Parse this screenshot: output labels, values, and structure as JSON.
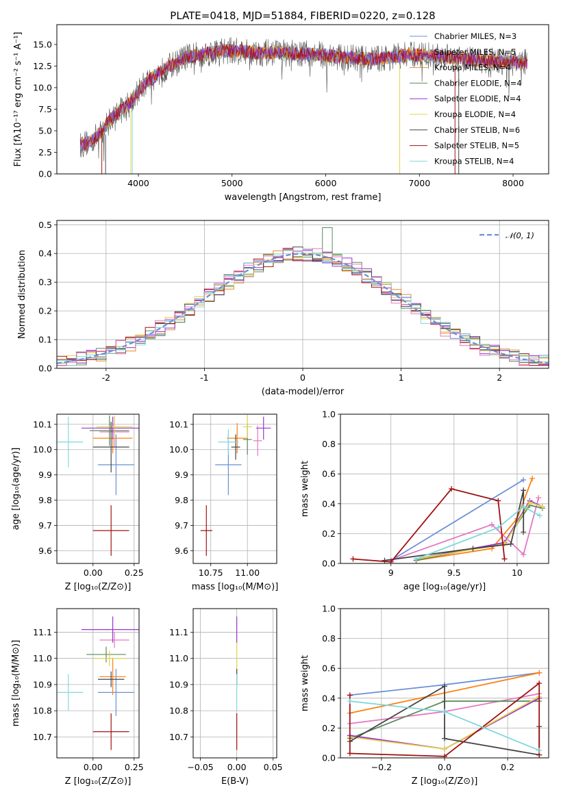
{
  "chart_data": [
    {
      "type": "line",
      "title": "PLATE=0418, MJD=51884, FIBERID=0220, z=0.128",
      "xlabel": "wavelength [Angstrom, rest frame]",
      "ylabel": "Flux [fλ10⁻¹⁷ erg cm⁻² s⁻¹ A⁻¹]",
      "xlim": [
        3130,
        8380
      ],
      "ylim": [
        0,
        17.3
      ],
      "xticks": [
        4000,
        5000,
        6000,
        7000,
        8000
      ],
      "yticks": [
        0.0,
        2.5,
        5.0,
        7.5,
        10.0,
        12.5,
        15.0
      ],
      "grid": false,
      "legend_placement": "top-right",
      "series": [
        {
          "name": "Chabrier MILES, N_SSP=3",
          "color": "#6a8fd8"
        },
        {
          "name": "Salpeter MILES, N_SSP=5",
          "color": "#ff7f0e"
        },
        {
          "name": "Kroupa MILES, N_SSP=4",
          "color": "#e08a2c"
        },
        {
          "name": "Chabrier ELODIE, N_SSP=4",
          "color": "#5a8a5a"
        },
        {
          "name": "Salpeter ELODIE, N_SSP=4",
          "color": "#9932cc"
        },
        {
          "name": "Kroupa ELODIE, N_SSP=4",
          "color": "#e3d24a"
        },
        {
          "name": "Chabrier STELIB, N_SSP=6",
          "color": "#444444"
        },
        {
          "name": "Salpeter STELIB, N_SSP=5",
          "color": "#a01010"
        },
        {
          "name": "Kroupa STELIB, N_SSP=4",
          "color": "#7fd8dc"
        }
      ],
      "continuum_x": [
        3380,
        3500,
        3600,
        3700,
        3800,
        3900,
        4000,
        4100,
        4200,
        4300,
        4400,
        4500,
        4700,
        4900,
        5100,
        5300,
        5500,
        5700,
        5900,
        6100,
        6300,
        6500,
        6700,
        6900,
        7100,
        7300,
        7500,
        7700,
        7900,
        8100
      ],
      "continuum_y": [
        3.3,
        3.8,
        4.8,
        6.3,
        7.3,
        8.1,
        9.6,
        10.8,
        11.5,
        12.3,
        12.8,
        13.5,
        13.9,
        14.3,
        14.2,
        14.0,
        14.1,
        13.9,
        13.9,
        13.6,
        13.4,
        13.3,
        13.5,
        13.8,
        13.7,
        13.5,
        13.3,
        13.1,
        13.0,
        12.9
      ]
    },
    {
      "type": "step",
      "xlabel": "(data-model)/error",
      "ylabel": "Normed distribution",
      "xlim": [
        -2.5,
        2.5
      ],
      "ylim": [
        0,
        0.515
      ],
      "xticks": [
        -2,
        -1,
        0,
        1,
        2
      ],
      "yticks": [
        0.0,
        0.1,
        0.2,
        0.3,
        0.4,
        0.5
      ],
      "grid": true,
      "legend": [
        {
          "name": "𝒩(0, 1)",
          "color": "#6a8fd8",
          "style": "dashed"
        }
      ],
      "legend_placement": "top-right"
    },
    {
      "type": "scatter",
      "panel": "age vs Z",
      "xlabel": "Z [log₁₀(Z/Z⊙)]",
      "ylabel": "age  [log₁₀(age/yr)]",
      "xlim": [
        -0.22,
        0.28
      ],
      "ylim": [
        9.55,
        10.14
      ],
      "xticks": [
        0.0,
        0.25
      ],
      "xticklabels": [
        "0.00",
        "0.25"
      ],
      "yticks": [
        9.6,
        9.7,
        9.8,
        9.9,
        10.0,
        10.1
      ],
      "grid": true,
      "points": [
        {
          "color": "#6a8fd8",
          "x": 0.14,
          "xerr": 0.11,
          "y": 9.94,
          "yerr": 0.12
        },
        {
          "color": "#ff7f0e",
          "x": 0.12,
          "xerr": 0.12,
          "y": 10.045,
          "yerr": 0.06
        },
        {
          "color": "#e377c2",
          "x": 0.13,
          "xerr": 0.09,
          "y": 10.07,
          "yerr": 0.06
        },
        {
          "color": "#5a8a5a",
          "x": 0.1,
          "xerr": 0.12,
          "y": 10.075,
          "yerr": 0.06
        },
        {
          "color": "#9932cc",
          "x": 0.12,
          "xerr": 0.19,
          "y": 10.085,
          "yerr": 0.045
        },
        {
          "color": "#e3d24a",
          "x": 0.13,
          "xerr": 0.11,
          "y": 10.09,
          "yerr": 0.045
        },
        {
          "color": "#444444",
          "x": 0.11,
          "xerr": 0.11,
          "y": 10.01,
          "yerr": 0.1
        },
        {
          "color": "#a01010",
          "x": 0.11,
          "xerr": 0.11,
          "y": 9.68,
          "yerr": 0.1
        },
        {
          "color": "#7fd8dc",
          "x": -0.15,
          "xerr": 0.09,
          "y": 10.03,
          "yerr": 0.1
        }
      ]
    },
    {
      "type": "scatter",
      "panel": "age vs mass",
      "xlabel": "mass [log₁₀(M/M⊙)]",
      "xlim": [
        10.63,
        11.2
      ],
      "ylim": [
        9.55,
        10.14
      ],
      "xticks": [
        10.75,
        11.0
      ],
      "xticklabels": [
        "10.75",
        "11.00"
      ],
      "yticks": [
        9.6,
        9.7,
        9.8,
        9.9,
        10.0,
        10.1
      ],
      "grid": true,
      "points": [
        {
          "color": "#6a8fd8",
          "x": 10.87,
          "xerr": 0.09,
          "y": 9.94,
          "yerr": 0.12
        },
        {
          "color": "#ff7f0e",
          "x": 10.93,
          "xerr": 0.07,
          "y": 10.045,
          "yerr": 0.06
        },
        {
          "color": "#e377c2",
          "x": 11.07,
          "xerr": 0.03,
          "y": 10.035,
          "yerr": 0.06
        },
        {
          "color": "#5a8a5a",
          "x": 11.0,
          "xerr": 0.03,
          "y": 10.04,
          "yerr": 0.06
        },
        {
          "color": "#9932cc",
          "x": 11.11,
          "xerr": 0.05,
          "y": 10.085,
          "yerr": 0.045
        },
        {
          "color": "#e3d24a",
          "x": 11.0,
          "xerr": 0.03,
          "y": 10.09,
          "yerr": 0.045
        },
        {
          "color": "#444444",
          "x": 10.92,
          "xerr": 0.03,
          "y": 10.01,
          "yerr": 0.05
        },
        {
          "color": "#a01010",
          "x": 10.72,
          "xerr": 0.04,
          "y": 9.68,
          "yerr": 0.1
        },
        {
          "color": "#7fd8dc",
          "x": 10.87,
          "xerr": 0.07,
          "y": 10.03,
          "yerr": 0.05
        }
      ]
    },
    {
      "type": "line",
      "panel": "mass weight vs age",
      "xlabel": "age  [log₁₀(age/yr)]",
      "ylabel": "mass weight",
      "xlim": [
        8.6,
        10.25
      ],
      "ylim": [
        0,
        1.0
      ],
      "xticks": [
        9.0,
        9.5,
        10.0
      ],
      "yticks": [
        0.0,
        0.2,
        0.4,
        0.6,
        0.8,
        1.0
      ],
      "grid": true,
      "series": [
        {
          "color": "#6a8fd8",
          "x": [
            9.0,
            10.05
          ],
          "y": [
            0.02,
            0.56
          ]
        },
        {
          "color": "#ff7f0e",
          "x": [
            9.2,
            9.8,
            10.0,
            10.12
          ],
          "y": [
            0.02,
            0.1,
            0.3,
            0.57
          ]
        },
        {
          "color": "#e377c2",
          "x": [
            9.0,
            9.8,
            10.05,
            10.17
          ],
          "y": [
            0.02,
            0.26,
            0.06,
            0.44
          ]
        },
        {
          "color": "#5a8a5a",
          "x": [
            9.2,
            9.9,
            10.1,
            10.2
          ],
          "y": [
            0.02,
            0.14,
            0.39,
            0.37
          ]
        },
        {
          "color": "#9932cc",
          "x": [
            9.2,
            9.9,
            10.1,
            10.2
          ],
          "y": [
            0.03,
            0.14,
            0.42,
            0.38
          ]
        },
        {
          "color": "#e3d24a",
          "x": [
            9.2,
            9.9,
            10.1,
            10.2
          ],
          "y": [
            0.03,
            0.13,
            0.41,
            0.38
          ]
        },
        {
          "color": "#444444",
          "x": [
            8.95,
            9.65,
            9.95,
            10.05,
            10.05,
            10.05
          ],
          "y": [
            0.02,
            0.1,
            0.13,
            0.49,
            0.21,
            0.38
          ]
        },
        {
          "color": "#a01010",
          "x": [
            8.7,
            9.0,
            9.48,
            9.85,
            9.9
          ],
          "y": [
            0.03,
            0.01,
            0.5,
            0.42,
            0.03
          ]
        },
        {
          "color": "#7fd8dc",
          "x": [
            9.2,
            9.85,
            10.05,
            10.18
          ],
          "y": [
            0.03,
            0.24,
            0.38,
            0.32
          ]
        }
      ]
    },
    {
      "type": "scatter",
      "panel": "mass vs Z",
      "xlabel": "Z [log₁₀(Z/Z⊙)]",
      "ylabel": "mass [log₁₀(M/M⊙)]",
      "xlim": [
        -0.22,
        0.28
      ],
      "ylim": [
        10.62,
        11.19
      ],
      "xticks": [
        0.0,
        0.25
      ],
      "xticklabels": [
        "0.00",
        "0.25"
      ],
      "yticks": [
        10.7,
        10.8,
        10.9,
        11.0,
        11.1
      ],
      "grid": true,
      "points": [
        {
          "color": "#6a8fd8",
          "x": 0.14,
          "xerr": 0.11,
          "y": 10.87,
          "yerr": 0.09
        },
        {
          "color": "#ff7f0e",
          "x": 0.12,
          "xerr": 0.08,
          "y": 10.93,
          "yerr": 0.07
        },
        {
          "color": "#e377c2",
          "x": 0.13,
          "xerr": 0.09,
          "y": 11.07,
          "yerr": 0.03
        },
        {
          "color": "#5a8a5a",
          "x": 0.08,
          "xerr": 0.12,
          "y": 11.015,
          "yerr": 0.03
        },
        {
          "color": "#9932cc",
          "x": 0.12,
          "xerr": 0.19,
          "y": 11.11,
          "yerr": 0.05
        },
        {
          "color": "#e3d24a",
          "x": 0.1,
          "xerr": 0.1,
          "y": 11.0,
          "yerr": 0.03
        },
        {
          "color": "#444444",
          "x": 0.11,
          "xerr": 0.08,
          "y": 10.92,
          "yerr": 0.03
        },
        {
          "color": "#a01010",
          "x": 0.11,
          "xerr": 0.11,
          "y": 10.72,
          "yerr": 0.07
        },
        {
          "color": "#7fd8dc",
          "x": -0.15,
          "xerr": 0.09,
          "y": 10.87,
          "yerr": 0.07
        }
      ]
    },
    {
      "type": "scatter",
      "panel": "mass vs E(B-V)",
      "xlabel": "E(B-V)",
      "xlim": [
        -0.06,
        0.055
      ],
      "ylim": [
        10.62,
        11.19
      ],
      "xticks": [
        -0.05,
        0.0,
        0.05
      ],
      "xticklabels": [
        "−0.05",
        "0.00",
        "0.05"
      ],
      "yticks": [
        10.7,
        10.8,
        10.9,
        11.0,
        11.1
      ],
      "grid": true,
      "points": [
        {
          "color": "#9932cc",
          "x": 0.0,
          "xerr": 0.0,
          "y": 11.11,
          "yerr": 0.05
        },
        {
          "color": "#e3d24a",
          "x": 0.0,
          "xerr": 0.0,
          "y": 11.0,
          "yerr": 0.06
        },
        {
          "color": "#444444",
          "x": 0.0,
          "xerr": 0.0,
          "y": 10.93,
          "yerr": 0.03
        },
        {
          "color": "#7fd8dc",
          "x": 0.0,
          "xerr": 0.0,
          "y": 10.87,
          "yerr": 0.07
        },
        {
          "color": "#a01010",
          "x": 0.0,
          "xerr": 0.0,
          "y": 10.72,
          "yerr": 0.07
        }
      ]
    },
    {
      "type": "line",
      "panel": "mass weight vs Z",
      "xlabel": "Z [log₁₀(Z/Z⊙)]",
      "ylabel": "mass weight",
      "xlim": [
        -0.33,
        0.33
      ],
      "ylim": [
        0,
        1.0
      ],
      "xticks": [
        -0.2,
        0.0,
        0.2
      ],
      "xticklabels": [
        "−0.2",
        "0.0",
        "0.2"
      ],
      "yticks": [
        0.0,
        0.2,
        0.4,
        0.6,
        0.8,
        1.0
      ],
      "grid": true,
      "series": [
        {
          "color": "#6a8fd8",
          "x": [
            -0.3,
            0.0,
            0.3
          ],
          "y": [
            0.42,
            0.49,
            0.57
          ]
        },
        {
          "color": "#ff7f0e",
          "x": [
            -0.3,
            0.3
          ],
          "y": [
            0.3,
            0.57
          ]
        },
        {
          "color": "#e377c2",
          "x": [
            -0.3,
            0.0,
            0.3
          ],
          "y": [
            0.23,
            0.31,
            0.43
          ]
        },
        {
          "color": "#5a8a5a",
          "x": [
            -0.3,
            0.0,
            0.3
          ],
          "y": [
            0.13,
            0.38,
            0.38
          ]
        },
        {
          "color": "#9932cc",
          "x": [
            -0.3,
            0.0,
            0.3
          ],
          "y": [
            0.15,
            0.06,
            0.4
          ]
        },
        {
          "color": "#e3d24a",
          "x": [
            -0.3,
            0.0,
            0.3
          ],
          "y": [
            0.14,
            0.06,
            0.41
          ]
        },
        {
          "color": "#444444",
          "x": [
            -0.3,
            0.0,
            0.0,
            0.3,
            0.3
          ],
          "y": [
            0.11,
            0.48,
            0.13,
            0.02,
            0.21
          ]
        },
        {
          "color": "#a01010",
          "x": [
            -0.3,
            -0.3,
            0.0,
            0.3,
            0.3
          ],
          "y": [
            0.42,
            0.03,
            0.01,
            0.5,
            0.02
          ]
        },
        {
          "color": "#7fd8dc",
          "x": [
            -0.3,
            0.0,
            0.3
          ],
          "y": [
            0.38,
            0.31,
            0.05
          ]
        }
      ]
    }
  ]
}
